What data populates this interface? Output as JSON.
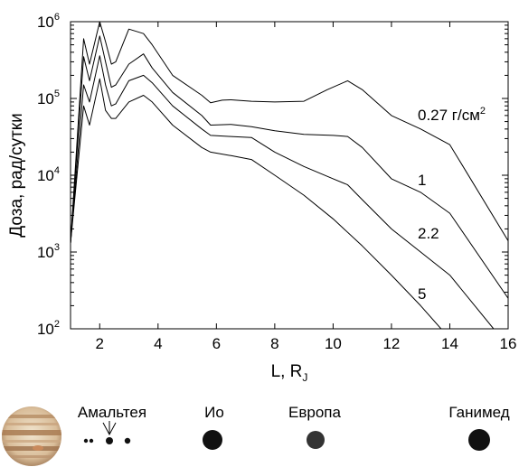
{
  "chart_data": {
    "type": "line",
    "xlabel": "L, R",
    "xlabel_sub": "J",
    "ylabel": "Доза, рад/сутки",
    "xlim": [
      1,
      16
    ],
    "ylim": [
      100,
      1000000
    ],
    "yscale": "log",
    "x_ticks": [
      2,
      4,
      6,
      8,
      10,
      12,
      14,
      16
    ],
    "y_ticks": [
      {
        "base": "10",
        "exp": "2",
        "value": 100
      },
      {
        "base": "10",
        "exp": "3",
        "value": 1000
      },
      {
        "base": "10",
        "exp": "4",
        "value": 10000
      },
      {
        "base": "10",
        "exp": "5",
        "value": 100000
      },
      {
        "base": "10",
        "exp": "6",
        "value": 1000000
      }
    ],
    "grid": false,
    "series": [
      {
        "name": "0.27 г/см",
        "name_sup": "2",
        "points": [
          [
            1.0,
            1300
          ],
          [
            1.45,
            600000
          ],
          [
            1.65,
            280000
          ],
          [
            2.0,
            1000000
          ],
          [
            2.2,
            550000
          ],
          [
            2.4,
            280000
          ],
          [
            2.55,
            300000
          ],
          [
            3.0,
            800000
          ],
          [
            3.5,
            700000
          ],
          [
            3.8,
            500000
          ],
          [
            4.5,
            200000
          ],
          [
            5.5,
            110000
          ],
          [
            5.8,
            88000
          ],
          [
            6.2,
            95000
          ],
          [
            6.5,
            96000
          ],
          [
            7.2,
            92000
          ],
          [
            8.0,
            90000
          ],
          [
            9.0,
            92000
          ],
          [
            9.8,
            130000
          ],
          [
            10.5,
            170000
          ],
          [
            11.0,
            130000
          ],
          [
            12.0,
            60000
          ],
          [
            13.0,
            40000
          ],
          [
            14.0,
            25000
          ],
          [
            16.0,
            1400
          ]
        ]
      },
      {
        "name": "1",
        "points": [
          [
            1.0,
            1300
          ],
          [
            1.45,
            350000
          ],
          [
            1.65,
            170000
          ],
          [
            2.0,
            650000
          ],
          [
            2.2,
            300000
          ],
          [
            2.4,
            140000
          ],
          [
            2.55,
            150000
          ],
          [
            3.0,
            280000
          ],
          [
            3.5,
            380000
          ],
          [
            3.8,
            250000
          ],
          [
            4.5,
            120000
          ],
          [
            5.5,
            60000
          ],
          [
            5.8,
            45000
          ],
          [
            6.5,
            46000
          ],
          [
            7.2,
            43000
          ],
          [
            8.0,
            38000
          ],
          [
            9.0,
            34000
          ],
          [
            10.0,
            33000
          ],
          [
            10.5,
            32000
          ],
          [
            11.0,
            23000
          ],
          [
            12.0,
            9000
          ],
          [
            13.0,
            6000
          ],
          [
            14.0,
            3200
          ],
          [
            16.0,
            250
          ]
        ]
      },
      {
        "name": "2.2",
        "points": [
          [
            1.0,
            1300
          ],
          [
            1.45,
            150000
          ],
          [
            1.65,
            90000
          ],
          [
            2.0,
            360000
          ],
          [
            2.2,
            150000
          ],
          [
            2.4,
            80000
          ],
          [
            2.55,
            85000
          ],
          [
            3.0,
            170000
          ],
          [
            3.5,
            200000
          ],
          [
            3.8,
            160000
          ],
          [
            4.5,
            80000
          ],
          [
            5.5,
            40000
          ],
          [
            5.8,
            33000
          ],
          [
            6.5,
            32000
          ],
          [
            7.2,
            31000
          ],
          [
            8.0,
            20000
          ],
          [
            9.0,
            13000
          ],
          [
            10.0,
            9000
          ],
          [
            10.5,
            7500
          ],
          [
            11.0,
            4800
          ],
          [
            12.0,
            2000
          ],
          [
            13.0,
            1000
          ],
          [
            14.0,
            500
          ],
          [
            15.5,
            100
          ]
        ]
      },
      {
        "name": "5",
        "points": [
          [
            1.0,
            1300
          ],
          [
            1.45,
            80000
          ],
          [
            1.65,
            45000
          ],
          [
            2.0,
            180000
          ],
          [
            2.2,
            70000
          ],
          [
            2.4,
            55000
          ],
          [
            2.55,
            55000
          ],
          [
            3.0,
            90000
          ],
          [
            3.5,
            110000
          ],
          [
            3.8,
            90000
          ],
          [
            4.5,
            45000
          ],
          [
            5.5,
            23000
          ],
          [
            5.8,
            20000
          ],
          [
            6.5,
            18000
          ],
          [
            7.2,
            16000
          ],
          [
            8.0,
            10000
          ],
          [
            9.0,
            5500
          ],
          [
            10.0,
            2700
          ],
          [
            11.0,
            1200
          ],
          [
            12.0,
            500
          ],
          [
            13.0,
            200
          ],
          [
            13.7,
            100
          ]
        ]
      }
    ]
  },
  "moons": [
    {
      "name": "Амальтея",
      "icon": "amalthea-group-icon"
    },
    {
      "name": "Ио",
      "icon": "io-icon"
    },
    {
      "name": "Европа",
      "icon": "europa-icon"
    },
    {
      "name": "Ганимед",
      "icon": "ganymede-icon"
    }
  ],
  "colors": {
    "line": "#000000",
    "moon_fill": "#111111",
    "europa_fill": "#333333",
    "jupiter_light": "#e8d8bf",
    "jupiter_band": "#a97b52"
  }
}
